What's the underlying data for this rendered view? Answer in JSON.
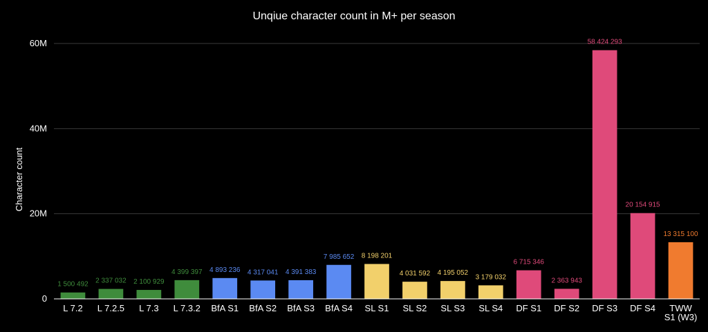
{
  "chart_data": {
    "type": "bar",
    "title": "Unqiue character count in M+ per season",
    "xlabel": "",
    "ylabel": "Character count",
    "ylim": [
      0,
      66000000
    ],
    "yticks": [
      {
        "value": 0,
        "label": "0"
      },
      {
        "value": 20000000,
        "label": "20M"
      },
      {
        "value": 40000000,
        "label": "40M"
      },
      {
        "value": 60000000,
        "label": "60M"
      }
    ],
    "grid": true,
    "legend": "none",
    "colors": {
      "legion": "#3f8c3c",
      "bfa": "#5b8af2",
      "sl": "#f2d06b",
      "df": "#df4a7a",
      "tww": "#f07b2f",
      "axis": "#ffffff",
      "grid": "#3a3a3a"
    },
    "bars": [
      {
        "category": "L 7.2",
        "value": 1500492,
        "label": "1 500 492",
        "group": "legion"
      },
      {
        "category": "L 7.2.5",
        "value": 2337032,
        "label": "2 337 032",
        "group": "legion"
      },
      {
        "category": "L 7.3",
        "value": 2100929,
        "label": "2 100 929",
        "group": "legion"
      },
      {
        "category": "L 7.3.2",
        "value": 4399397,
        "label": "4 399 397",
        "group": "legion"
      },
      {
        "category": "BfA S1",
        "value": 4893236,
        "label": "4 893 236",
        "group": "bfa"
      },
      {
        "category": "BfA S2",
        "value": 4317041,
        "label": "4 317 041",
        "group": "bfa"
      },
      {
        "category": "BfA S3",
        "value": 4391383,
        "label": "4 391 383",
        "group": "bfa"
      },
      {
        "category": "BfA S4",
        "value": 7985652,
        "label": "7 985 652",
        "group": "bfa"
      },
      {
        "category": "SL S1",
        "value": 8198201,
        "label": "8 198 201",
        "group": "sl"
      },
      {
        "category": "SL S2",
        "value": 4031592,
        "label": "4 031 592",
        "group": "sl"
      },
      {
        "category": "SL S3",
        "value": 4195052,
        "label": "4 195 052",
        "group": "sl"
      },
      {
        "category": "SL S4",
        "value": 3179032,
        "label": "3 179 032",
        "group": "sl"
      },
      {
        "category": "DF S1",
        "value": 6715346,
        "label": "6 715 346",
        "group": "df"
      },
      {
        "category": "DF S2",
        "value": 2363943,
        "label": "2 363 943",
        "group": "df"
      },
      {
        "category": "DF S3",
        "value": 58424293,
        "label": "58 424 293",
        "group": "df"
      },
      {
        "category": "DF S4",
        "value": 20154915,
        "label": "20 154 915",
        "group": "df"
      },
      {
        "category": "TWW\nS1 (W3)",
        "value": 13315100,
        "label": "13 315 100",
        "group": "tww"
      }
    ]
  }
}
